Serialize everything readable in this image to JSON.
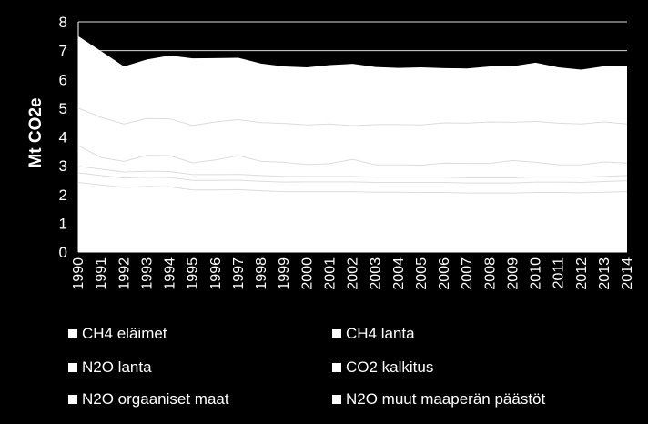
{
  "chart_data": {
    "type": "area",
    "stacked": true,
    "ylabel": "Mt CO2e",
    "ylim": [
      0,
      8
    ],
    "yticks": [
      0,
      1,
      2,
      3,
      4,
      5,
      6,
      7,
      8
    ],
    "grid": "horizontal",
    "legend_position": "bottom",
    "categories": [
      "1990",
      "1991",
      "1992",
      "1993",
      "1994",
      "1995",
      "1996",
      "1997",
      "1998",
      "1999",
      "2000",
      "2001",
      "2002",
      "2003",
      "2004",
      "2005",
      "2006",
      "2007",
      "2008",
      "2009",
      "2010",
      "2011",
      "2012",
      "2013",
      "2014"
    ],
    "series": [
      {
        "name": "CH4 eläimet",
        "values": [
          2.42,
          2.33,
          2.25,
          2.28,
          2.27,
          2.16,
          2.16,
          2.17,
          2.13,
          2.1,
          2.1,
          2.1,
          2.1,
          2.08,
          2.08,
          2.07,
          2.07,
          2.05,
          2.05,
          2.05,
          2.07,
          2.07,
          2.06,
          2.08,
          2.1
        ]
      },
      {
        "name": "CH4 lanta",
        "values": [
          0.33,
          0.33,
          0.32,
          0.32,
          0.32,
          0.33,
          0.33,
          0.33,
          0.33,
          0.33,
          0.34,
          0.34,
          0.34,
          0.34,
          0.34,
          0.35,
          0.35,
          0.35,
          0.35,
          0.35,
          0.36,
          0.36,
          0.36,
          0.37,
          0.38
        ]
      },
      {
        "name": "N2O lanta",
        "values": [
          0.23,
          0.22,
          0.21,
          0.21,
          0.21,
          0.2,
          0.2,
          0.2,
          0.2,
          0.2,
          0.19,
          0.19,
          0.19,
          0.18,
          0.18,
          0.18,
          0.18,
          0.18,
          0.18,
          0.18,
          0.18,
          0.18,
          0.18,
          0.18,
          0.18
        ]
      },
      {
        "name": "CO2 kalkitus",
        "values": [
          0.72,
          0.4,
          0.37,
          0.55,
          0.55,
          0.41,
          0.51,
          0.65,
          0.49,
          0.49,
          0.41,
          0.44,
          0.59,
          0.43,
          0.43,
          0.42,
          0.49,
          0.5,
          0.5,
          0.6,
          0.51,
          0.42,
          0.43,
          0.5,
          0.43
        ]
      },
      {
        "name": "N2O orgaaniset maat",
        "values": [
          1.3,
          1.4,
          1.3,
          1.28,
          1.28,
          1.3,
          1.32,
          1.25,
          1.35,
          1.35,
          1.38,
          1.38,
          1.17,
          1.4,
          1.4,
          1.4,
          1.4,
          1.4,
          1.44,
          1.33,
          1.42,
          1.45,
          1.42,
          1.39,
          1.36
        ]
      },
      {
        "name": "N2O muut maaperän päästöt",
        "values": [
          2.5,
          2.3,
          2.0,
          2.05,
          2.2,
          2.33,
          2.22,
          2.15,
          2.05,
          1.98,
          2.0,
          2.05,
          2.15,
          2.0,
          1.97,
          2.0,
          1.9,
          1.9,
          1.93,
          1.95,
          2.04,
          1.94,
          1.89,
          1.94,
          2.0
        ]
      }
    ],
    "legend": [
      "CH4 eläimet",
      "CH4 lanta",
      "N2O lanta",
      "CO2 kalkitus",
      "N2O orgaaniset maat",
      "N2O muut maaperän päästöt"
    ]
  }
}
